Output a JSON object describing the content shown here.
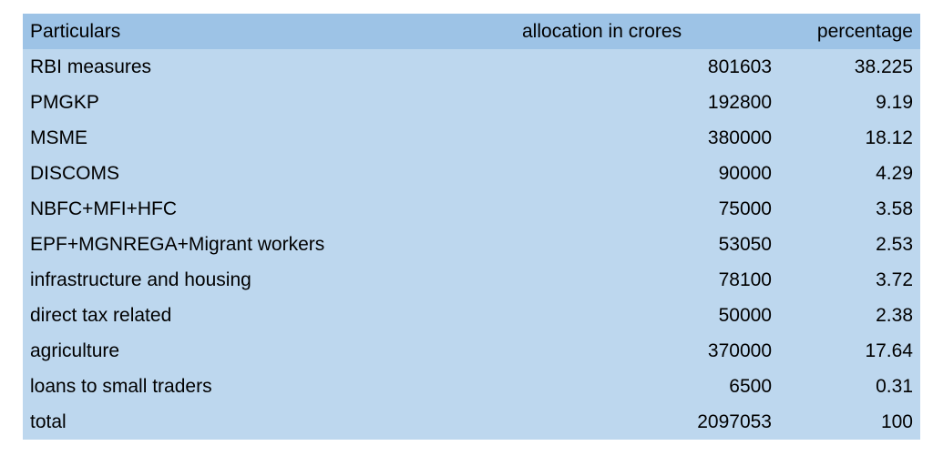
{
  "table": {
    "header": [
      "Particulars",
      "allocation in crores",
      "percentage"
    ],
    "rows": [
      [
        "RBI measures",
        "801603",
        "38.225"
      ],
      [
        "PMGKP",
        "192800",
        "9.19"
      ],
      [
        "MSME",
        "380000",
        "18.12"
      ],
      [
        "DISCOMS",
        "90000",
        "4.29"
      ],
      [
        "NBFC+MFI+HFC",
        "75000",
        "3.58"
      ],
      [
        "EPF+MGNREGA+Migrant workers",
        "53050",
        "2.53"
      ],
      [
        "infrastructure and housing",
        "78100",
        "3.72"
      ],
      [
        "direct tax related",
        "50000",
        "2.38"
      ],
      [
        "agriculture",
        "370000",
        "17.64"
      ],
      [
        "loans to small traders",
        "6500",
        "0.31"
      ],
      [
        "total",
        "2097053",
        "100"
      ]
    ]
  }
}
